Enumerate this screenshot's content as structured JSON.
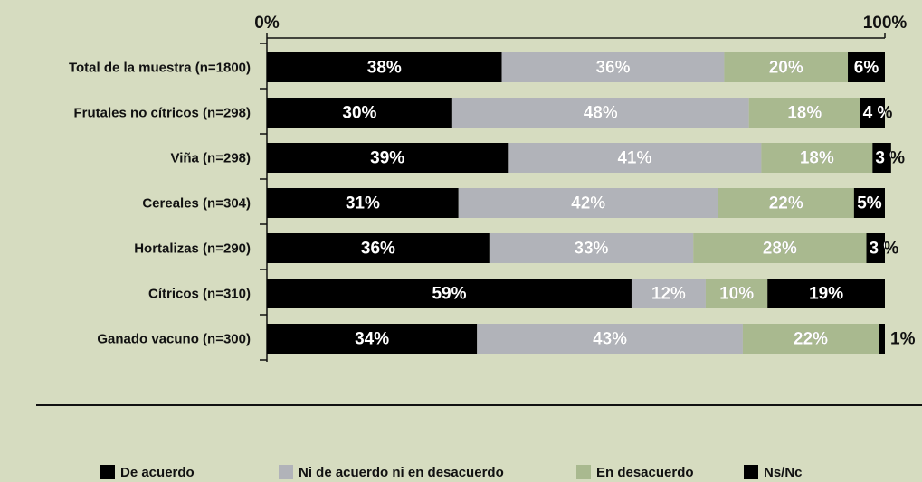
{
  "chart_data": {
    "type": "stacked_bar_horizontal",
    "categories": [
      "Total de la muestra (n=1800)",
      "Frutales no cítricos (n=298)",
      "Viña (n=298)",
      "Cereales (n=304)",
      "Hortalizas (n=290)",
      "Cítricos (n=310)",
      "Ganado vacuno (n=300)"
    ],
    "series": [
      {
        "name": "De acuerdo",
        "color": "#000000",
        "values": [
          38,
          30,
          39,
          31,
          36,
          59,
          34
        ],
        "value_labels": [
          "38%",
          "30%",
          "39%",
          "31%",
          "36%",
          "59%",
          "34%"
        ]
      },
      {
        "name": "Ni de acuerdo ni en desacuerdo",
        "color": "#b1b3b9",
        "values": [
          36,
          48,
          41,
          42,
          33,
          12,
          43
        ],
        "value_labels": [
          "36%",
          "48%",
          "41%",
          "42%",
          "33%",
          "12%",
          "43%"
        ]
      },
      {
        "name": "En desacuerdo",
        "color": "#a9b98f",
        "values": [
          20,
          18,
          18,
          22,
          28,
          10,
          22
        ],
        "value_labels": [
          "20%",
          "18%",
          "18%",
          "22%",
          "28%",
          "10%",
          "22%"
        ]
      },
      {
        "name": "Ns/Nc",
        "color": "#000000",
        "values": [
          6,
          4,
          3,
          5,
          3,
          19,
          1
        ],
        "value_labels": [
          "6%",
          "4 %",
          "3 %",
          "5%",
          "3 %",
          "19%",
          "1%"
        ]
      }
    ],
    "xlim": [
      0,
      100
    ],
    "xticks": [
      {
        "value": 0,
        "label": "0%"
      },
      {
        "value": 100,
        "label": "100%"
      }
    ],
    "legend": "bottom"
  }
}
